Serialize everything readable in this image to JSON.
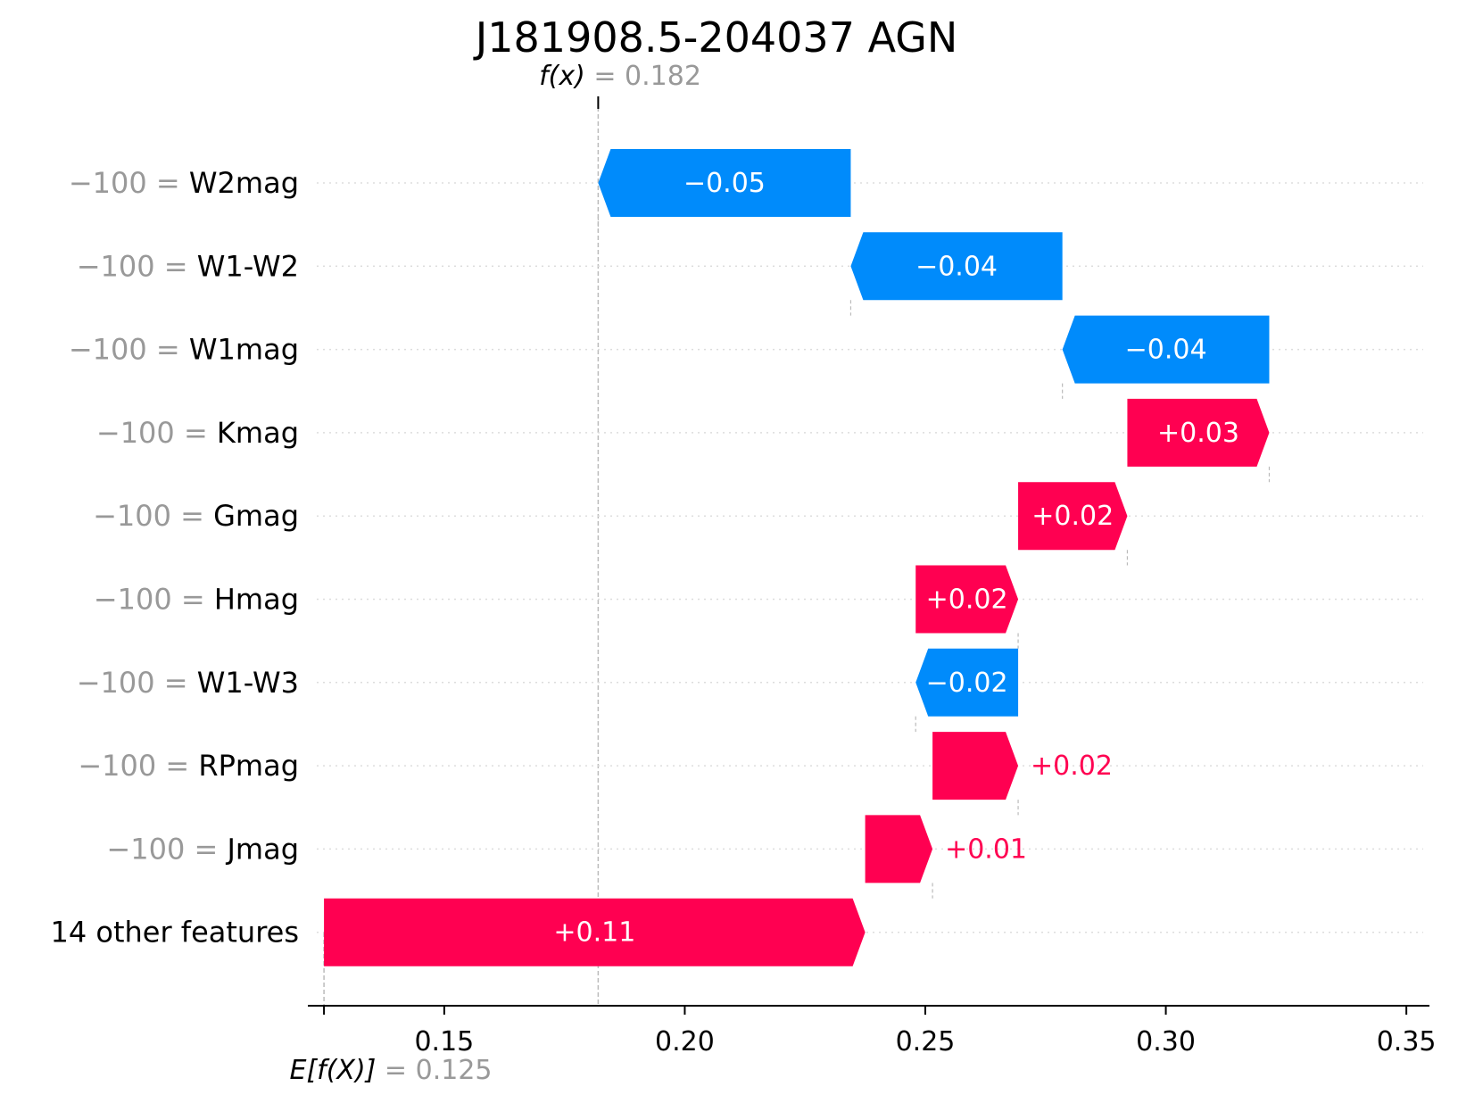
{
  "chart_data": {
    "type": "waterfall",
    "title": "J181908.5-204037 AGN",
    "base_value": {
      "symbol": "E[f(X)]",
      "eq": " = ",
      "value_label": "0.125",
      "value": 0.125
    },
    "output_value": {
      "symbol": "f(x)",
      "eq": " = ",
      "value_label": "0.182",
      "value": 0.182
    },
    "features": [
      {
        "value_text": "−100",
        "eq": " = ",
        "name": "W2mag",
        "label": "−0.05",
        "start": 0.2345,
        "end": 0.182
      },
      {
        "value_text": "−100",
        "eq": " = ",
        "name": "W1-W2",
        "label": "−0.04",
        "start": 0.2785,
        "end": 0.2345
      },
      {
        "value_text": "−100",
        "eq": " = ",
        "name": "W1mag",
        "label": "−0.04",
        "start": 0.3215,
        "end": 0.2785
      },
      {
        "value_text": "−100",
        "eq": " = ",
        "name": "Kmag",
        "label": "+0.03",
        "start": 0.292,
        "end": 0.3215
      },
      {
        "value_text": "−100",
        "eq": " = ",
        "name": "Gmag",
        "label": "+0.02",
        "start": 0.2693,
        "end": 0.292
      },
      {
        "value_text": "−100",
        "eq": " = ",
        "name": "Hmag",
        "label": "+0.02",
        "start": 0.248,
        "end": 0.2693
      },
      {
        "value_text": "−100",
        "eq": " = ",
        "name": "W1-W3",
        "label": "−0.02",
        "start": 0.2693,
        "end": 0.248
      },
      {
        "value_text": "−100",
        "eq": " = ",
        "name": "RPmag",
        "label": "+0.02",
        "start": 0.2515,
        "end": 0.2693
      },
      {
        "value_text": "−100",
        "eq": " = ",
        "name": "Jmag",
        "label": "+0.01",
        "start": 0.2375,
        "end": 0.2515
      },
      {
        "value_text": "",
        "eq": "",
        "name": "14 other features",
        "label": "+0.11",
        "start": 0.125,
        "end": 0.2375
      }
    ],
    "x_ticks": [
      "0.15",
      "0.20",
      "0.25",
      "0.30",
      "0.35"
    ],
    "x_tick_values": [
      0.15,
      0.2,
      0.25,
      0.3,
      0.35
    ],
    "xlim": [
      0.1235,
      0.3535
    ],
    "colors": {
      "positive": "#ff0051",
      "negative": "#008bfb",
      "muted": "#999999",
      "grid": "#cccccc"
    }
  }
}
